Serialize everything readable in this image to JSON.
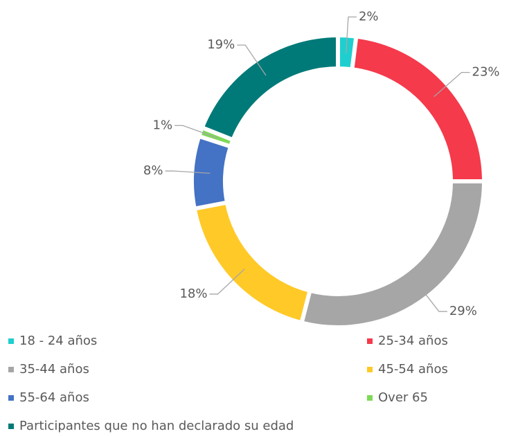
{
  "chart_data": {
    "type": "donut",
    "categories": [
      "18 - 24 años",
      "25-34 años",
      "35-44 años",
      "45-54 años",
      "55-64 años",
      "Over 65",
      "Participantes que no han declarado su edad"
    ],
    "values": [
      2,
      23,
      29,
      18,
      8,
      1,
      19
    ],
    "value_labels": [
      "2%",
      "23%",
      "29%",
      "18%",
      "8%",
      "1%",
      "19%"
    ],
    "colors": [
      "#1fcfcf",
      "#f53a4b",
      "#a6a6a6",
      "#ffc928",
      "#4472c4",
      "#7ed957",
      "#007a78"
    ],
    "legend": "bottom"
  }
}
